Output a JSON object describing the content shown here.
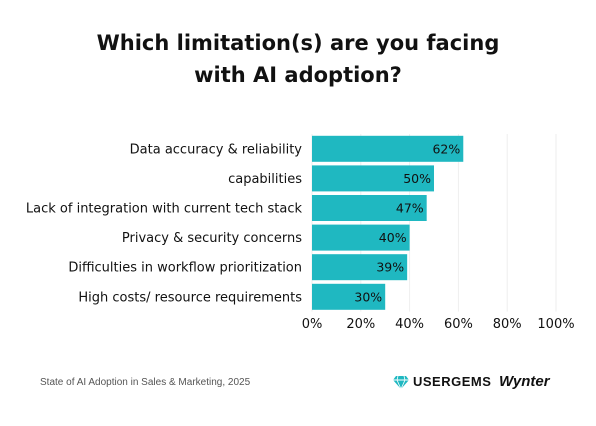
{
  "chart_data": {
    "type": "bar",
    "orientation": "horizontal",
    "title_lines": [
      "Which limitation(s) are you facing",
      "with AI adoption?"
    ],
    "categories": [
      "Data accuracy & reliability",
      "capabilities",
      "Lack of integration with current tech stack",
      "Privacy & security concerns",
      "Difficulties in workflow prioritization",
      "High costs/ resource requirements"
    ],
    "values": [
      62,
      50,
      47,
      40,
      39,
      30
    ],
    "value_labels": [
      "62%",
      "50%",
      "47%",
      "40%",
      "39%",
      "30%"
    ],
    "xlim": [
      0,
      100
    ],
    "x_ticks": [
      "0%",
      "20%",
      "40%",
      "60%",
      "80%",
      "100%"
    ],
    "grid": "vertical",
    "bar_color": "#1fb8c1"
  },
  "footer": {
    "source": "State of AI Adoption in Sales & Marketing, 2025",
    "logo_usergems": "USERGEMS",
    "logo_wynter": "Wynter"
  }
}
